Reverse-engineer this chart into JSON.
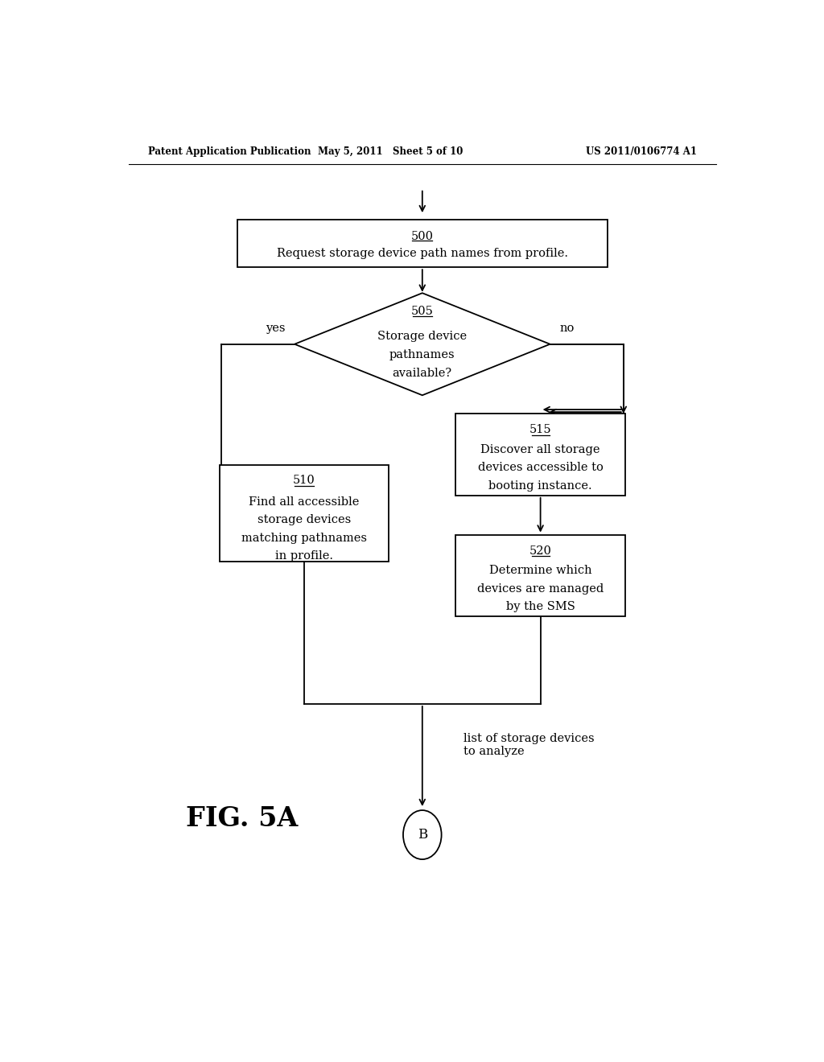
{
  "bg_color": "#ffffff",
  "header_left": "Patent Application Publication",
  "header_mid": "May 5, 2011   Sheet 5 of 10",
  "header_right": "US 2011/0106774 A1",
  "fig_label": "FIG. 5A",
  "box500_lines": [
    "500",
    "Request storage device path names from profile."
  ],
  "diamond505_lines": [
    "505",
    "Storage device",
    "pathnames",
    "available?"
  ],
  "box510_lines": [
    "510",
    "Find all accessible",
    "storage devices",
    "matching pathnames",
    "in profile."
  ],
  "box515_lines": [
    "515",
    "Discover all storage",
    "devices accessible to",
    "booting instance."
  ],
  "box520_lines": [
    "520",
    "Determine which",
    "devices are managed",
    "by the SMS"
  ],
  "circle_label": "B",
  "yes_label": "yes",
  "no_label": "no",
  "list_label": "list of storage devices\nto analyze"
}
